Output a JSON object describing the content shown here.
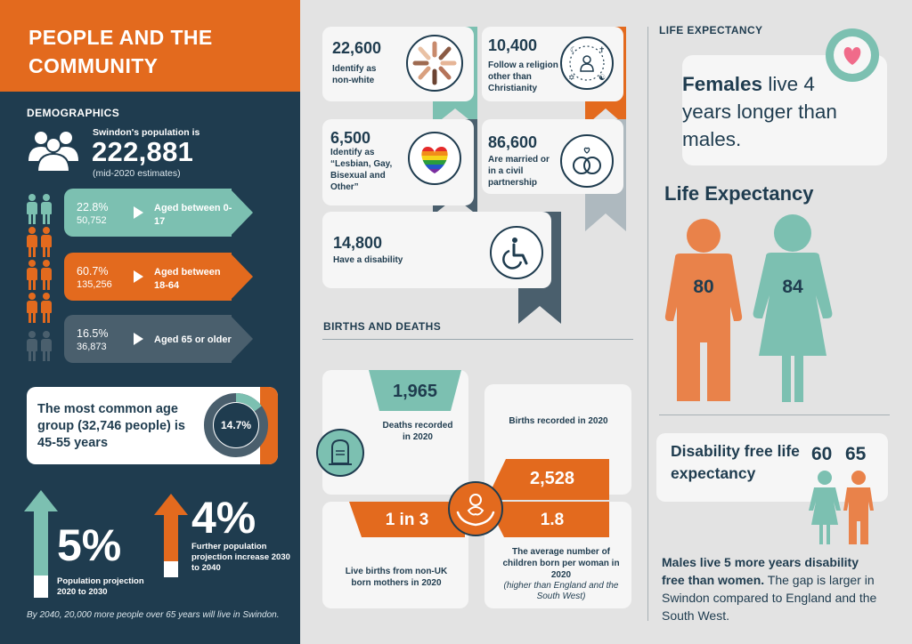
{
  "title": "PEOPLE AND THE COMMUNITY",
  "demographics": {
    "label": "DEMOGRAPHICS",
    "population_intro": "Swindon's population is",
    "population_value": "222,881",
    "population_note": "(mid-2020 estimates)",
    "age_groups": [
      {
        "pct": "22.8%",
        "count": "50,752",
        "label": "Aged between 0-17",
        "color": "#7cc0b1"
      },
      {
        "pct": "60.7%",
        "count": "135,256",
        "label": "Aged between 18-64",
        "color": "#e36a1e"
      },
      {
        "pct": "16.5%",
        "count": "36,873",
        "label": "Aged 65 or older",
        "color": "#4a5f6d"
      }
    ],
    "common_age_text": "The most common age group (32,746 people) is 45-55 years",
    "common_age_pct": "14.7%",
    "common_age_fraction": 0.147
  },
  "projections": {
    "p1_pct": "5%",
    "p1_text": "Population projection 2020 to 2030",
    "p2_pct": "4%",
    "p2_text": "Further population projection increase 2030 to 2040",
    "footnote": "By 2040, 20,000 more people over 65 years will live in Swindon."
  },
  "stats": {
    "nonwhite": {
      "value": "22,600",
      "desc": "Identify as non-white"
    },
    "religion": {
      "value": "10,400",
      "desc": "Follow a religion other than Christianity"
    },
    "lgb": {
      "value": "6,500",
      "desc": "Identify as “Lesbian, Gay, Bisexual and Other”"
    },
    "married": {
      "value": "86,600",
      "desc": "Are married or in a civil partnership"
    },
    "disability": {
      "value": "14,800",
      "desc": "Have a disability"
    }
  },
  "births_deaths": {
    "label": "BIRTHS AND DEATHS",
    "deaths_value": "1,965",
    "deaths_text": "Deaths recorded in 2020",
    "births_value": "2,528",
    "births_text": "Births recorded in 2020",
    "nonuk_value": "1 in 3",
    "nonuk_text": "Live births from non-UK born mothers in 2020",
    "fertility_value": "1.8",
    "fertility_text": "The average number of children born per woman in 2020",
    "fertility_note": "(higher than England and the South West)"
  },
  "life_expectancy": {
    "label": "LIFE EXPECTANCY",
    "females_bold": "Females",
    "females_text": "live 4 years longer than males.",
    "heading": "Life Expectancy",
    "male_value": "80",
    "female_value": "84",
    "male_color": "#e9824a",
    "female_color": "#7cc0b1",
    "dfle_label": "Disability free life expectancy",
    "dfle_female": "60",
    "dfle_male": "65",
    "males_bold": "Males live 5 more years disability free than women.",
    "males_text": "The gap is larger in Swindon compared to England and the South West."
  }
}
